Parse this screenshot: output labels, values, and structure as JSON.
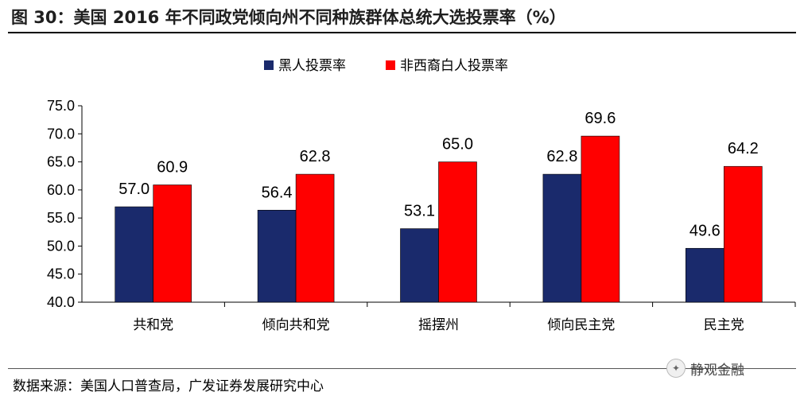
{
  "title": "图 30：美国 2016 年不同政党倾向州不同种族群体总统大选投票率（%）",
  "source": "数据来源：美国人口普查局，广发证券发展研究中心",
  "watermark": "静观金融",
  "colors": {
    "series_black": "#1a2a6c",
    "series_white": "#ff0000"
  },
  "chart_data": {
    "type": "bar",
    "title": "",
    "xlabel": "",
    "ylabel": "",
    "categories": [
      "共和党",
      "倾向共和党",
      "摇摆州",
      "倾向民主党",
      "民主党"
    ],
    "series": [
      {
        "name": "黑人投票率",
        "values": [
          57.0,
          56.4,
          53.1,
          62.8,
          49.6
        ]
      },
      {
        "name": "非西裔白人投票率",
        "values": [
          60.9,
          62.8,
          65.0,
          69.6,
          64.2
        ]
      }
    ],
    "ylim": [
      40.0,
      75.0
    ],
    "yticks": [
      "40.0",
      "45.0",
      "50.0",
      "55.0",
      "60.0",
      "65.0",
      "70.0",
      "75.0"
    ],
    "grid": false,
    "legend": "top-center",
    "data_labels": true
  }
}
